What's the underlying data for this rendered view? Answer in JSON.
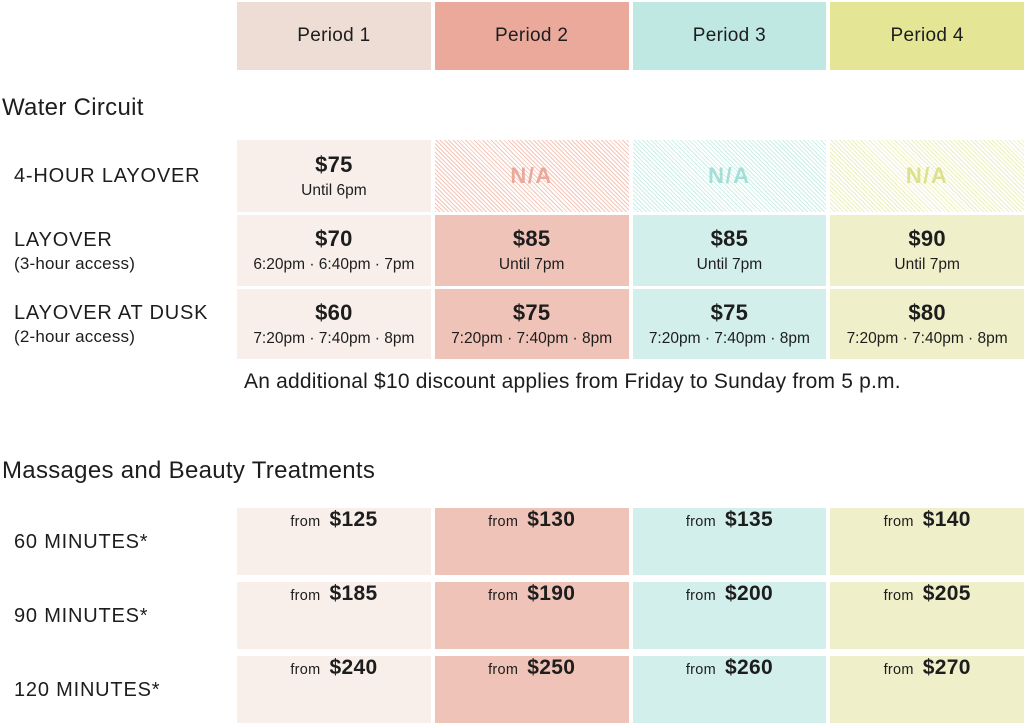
{
  "colors": {
    "period1_header": "#eeddd5",
    "period2_header": "#eba99c",
    "period3_header": "#bfe8e3",
    "period4_header": "#e4e696",
    "period1_body": "#f8efea",
    "period2_body": "#f0c3b8",
    "period3_body": "#d3efec",
    "period4_body": "#eff0ca",
    "na3_text": "#a5ded7",
    "na4_text": "#dee18a",
    "text": "#1d1d1d"
  },
  "periods": [
    "Period 1",
    "Period 2",
    "Period 3",
    "Period 4"
  ],
  "water": {
    "title": "Water Circuit",
    "rows": [
      {
        "label": "4-HOUR LAYOVER",
        "sublabel": "",
        "cells": [
          {
            "price": "$75",
            "sub": "Until 6pm"
          },
          {
            "price": "N/A",
            "sub": ""
          },
          {
            "price": "N/A",
            "sub": ""
          },
          {
            "price": "N/A",
            "sub": ""
          }
        ]
      },
      {
        "label": "LAYOVER",
        "sublabel": "(3-hour access)",
        "cells": [
          {
            "price": "$70",
            "sub": "6:20pm · 6:40pm · 7pm"
          },
          {
            "price": "$85",
            "sub": "Until 7pm"
          },
          {
            "price": "$85",
            "sub": "Until 7pm"
          },
          {
            "price": "$90",
            "sub": "Until 7pm"
          }
        ]
      },
      {
        "label": "LAYOVER AT DUSK",
        "sublabel": "(2-hour access)",
        "cells": [
          {
            "price": "$60",
            "sub": "7:20pm · 7:40pm · 8pm"
          },
          {
            "price": "$75",
            "sub": "7:20pm · 7:40pm · 8pm"
          },
          {
            "price": "$75",
            "sub": "7:20pm · 7:40pm · 8pm"
          },
          {
            "price": "$80",
            "sub": "7:20pm · 7:40pm · 8pm"
          }
        ]
      }
    ],
    "note": "An additional $10 discount applies from Friday to Sunday from 5 p.m."
  },
  "massages": {
    "title": "Massages and Beauty Treatments",
    "from_label": "from",
    "rows": [
      {
        "label": "60 MINUTES*",
        "prices": [
          "$125",
          "$130",
          "$135",
          "$140"
        ]
      },
      {
        "label": "90 MINUTES*",
        "prices": [
          "$185",
          "$190",
          "$200",
          "$205"
        ]
      },
      {
        "label": "120 MINUTES*",
        "prices": [
          "$240",
          "$250",
          "$260",
          "$270"
        ]
      }
    ]
  }
}
